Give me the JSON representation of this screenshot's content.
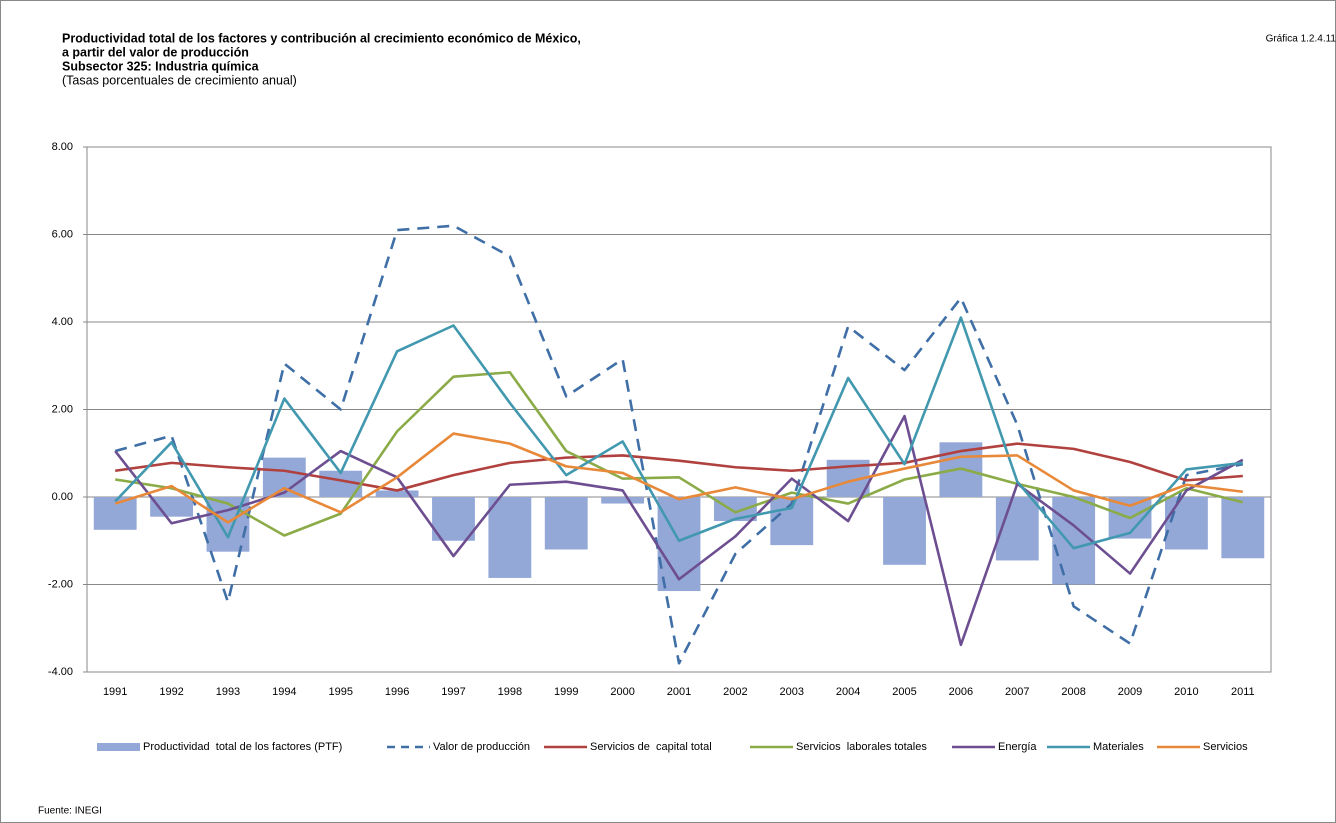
{
  "chart_data": {
    "type": "combo",
    "title": [
      "Productividad total de los factores y contribución al crecimiento económico de México,",
      "a partir del valor de producción",
      "Subsector 325: Industria química"
    ],
    "subtitle": "(Tasas porcentuales de crecimiento anual)",
    "figure_label": "Gráfica 1.2.4.11",
    "source": "Fuente: INEGI",
    "categories": [
      "1991",
      "1992",
      "1993",
      "1994",
      "1995",
      "1996",
      "1997",
      "1998",
      "1999",
      "2000",
      "2001",
      "2002",
      "2003",
      "2004",
      "2005",
      "2006",
      "2007",
      "2008",
      "2009",
      "2010",
      "2011"
    ],
    "ylim": [
      -4,
      8
    ],
    "yticks": [
      {
        "value": -4,
        "label": "-4.00"
      },
      {
        "value": -2,
        "label": "-2.00"
      },
      {
        "value": 0,
        "label": "0.00"
      },
      {
        "value": 2,
        "label": "2.00"
      },
      {
        "value": 4,
        "label": "4.00"
      },
      {
        "value": 6,
        "label": "6.00"
      },
      {
        "value": 8,
        "label": "8.00"
      }
    ],
    "grid": true,
    "legend": "bottom",
    "series": [
      {
        "name": "Productividad  total de los factores (PTF)",
        "type": "bar",
        "color": "#94a8d8",
        "values": [
          -0.75,
          -0.45,
          -1.25,
          0.9,
          0.6,
          0.15,
          -1.0,
          -1.85,
          -1.2,
          -0.15,
          -2.15,
          -0.55,
          -1.1,
          0.85,
          -1.55,
          1.25,
          -1.45,
          -2.0,
          -0.95,
          -1.2,
          -1.4
        ]
      },
      {
        "name": "Valor de producción",
        "type": "line",
        "dashed": true,
        "color": "#3f6fa6",
        "values": [
          1.05,
          1.4,
          -2.4,
          3.05,
          2.0,
          6.1,
          6.2,
          5.5,
          2.3,
          3.15,
          -3.8,
          -1.3,
          -0.15,
          3.9,
          2.9,
          4.55,
          1.65,
          -2.5,
          -3.35,
          0.5,
          0.75
        ]
      },
      {
        "name": "Servicios de  capital total",
        "type": "line",
        "color": "#b0413e",
        "values": [
          0.6,
          0.78,
          0.68,
          0.6,
          0.38,
          0.15,
          0.5,
          0.78,
          0.9,
          0.95,
          0.83,
          0.68,
          0.6,
          0.7,
          0.78,
          1.05,
          1.22,
          1.1,
          0.8,
          0.38,
          0.48
        ]
      },
      {
        "name": "Servicios  laborales totales",
        "type": "line",
        "color": "#8bab48",
        "values": [
          0.4,
          0.2,
          -0.15,
          -0.88,
          -0.38,
          1.5,
          2.75,
          2.85,
          1.05,
          0.42,
          0.45,
          -0.35,
          0.1,
          -0.15,
          0.4,
          0.65,
          0.3,
          0.0,
          -0.48,
          0.2,
          -0.12
        ]
      },
      {
        "name": "Energía",
        "type": "line",
        "color": "#6d4f91",
        "values": [
          1.05,
          -0.6,
          -0.3,
          0.1,
          1.05,
          0.45,
          -1.35,
          0.28,
          0.35,
          0.15,
          -1.88,
          -0.9,
          0.42,
          -0.55,
          1.85,
          -3.38,
          0.3,
          -0.65,
          -1.75,
          0.15,
          0.85
        ]
      },
      {
        "name": "Materiales",
        "type": "line",
        "color": "#4198af",
        "values": [
          -0.1,
          1.25,
          -0.92,
          2.25,
          0.55,
          3.33,
          3.92,
          2.15,
          0.5,
          1.27,
          -1.0,
          -0.5,
          -0.25,
          2.72,
          0.75,
          4.1,
          0.35,
          -1.17,
          -0.82,
          0.63,
          0.78
        ]
      },
      {
        "name": "Servicios",
        "type": "line",
        "color": "#e8893a",
        "values": [
          -0.15,
          0.25,
          -0.58,
          0.2,
          -0.35,
          0.45,
          1.45,
          1.22,
          0.7,
          0.55,
          -0.05,
          0.22,
          -0.05,
          0.35,
          0.65,
          0.92,
          0.95,
          0.15,
          -0.2,
          0.28,
          0.12
        ]
      }
    ]
  }
}
